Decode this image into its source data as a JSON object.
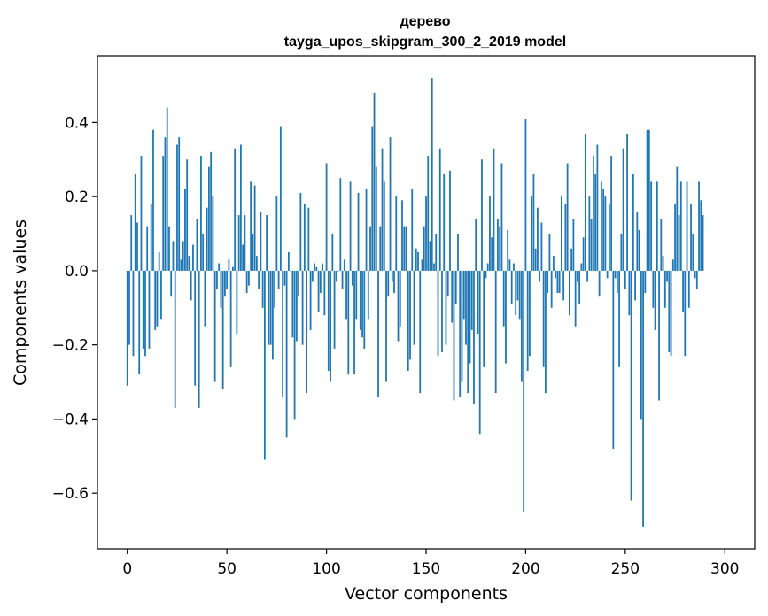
{
  "chart_data": {
    "type": "bar",
    "title_line1": "дерево",
    "title_line2": "tayga_upos_skipgram_300_2_2019 model",
    "xlabel": "Vector components",
    "ylabel": "Components values",
    "xlim": [
      -15,
      315
    ],
    "ylim": [
      -0.75,
      0.58
    ],
    "xticks": [
      0,
      50,
      100,
      150,
      200,
      250,
      300
    ],
    "yticks": [
      -0.6,
      -0.4,
      -0.2,
      0.0,
      0.2,
      0.4
    ],
    "ytick_labels": [
      "−0.6",
      "−0.4",
      "−0.2",
      "0.0",
      "0.2",
      "0.4"
    ],
    "bar_color": "#1f77b4",
    "values": [
      -0.31,
      -0.2,
      0.15,
      -0.23,
      0.26,
      0.13,
      -0.28,
      0.31,
      -0.21,
      -0.23,
      0.12,
      -0.21,
      0.18,
      0.38,
      -0.16,
      -0.15,
      0.05,
      -0.13,
      0.31,
      0.36,
      0.44,
      0.12,
      -0.07,
      0.08,
      -0.37,
      0.34,
      0.36,
      0.03,
      0.08,
      0.22,
      0.3,
      0.04,
      -0.08,
      0.07,
      -0.31,
      0.14,
      -0.37,
      0.31,
      0.1,
      -0.15,
      0.17,
      0.28,
      0.32,
      0.2,
      -0.3,
      -0.05,
      0.02,
      -0.1,
      -0.32,
      -0.07,
      -0.05,
      0.03,
      -0.26,
      0.01,
      0.33,
      -0.17,
      0.15,
      0.34,
      0.07,
      0.15,
      -0.06,
      -0.04,
      0.24,
      0.1,
      0.23,
      0.04,
      -0.05,
      0.16,
      -0.1,
      -0.51,
      0.15,
      -0.2,
      -0.2,
      -0.24,
      -0.1,
      0.2,
      -0.05,
      0.39,
      -0.34,
      -0.04,
      -0.45,
      0.05,
      0.0,
      -0.18,
      -0.4,
      -0.19,
      -0.07,
      0.21,
      -0.2,
      0.18,
      -0.33,
      0.17,
      -0.16,
      -0.03,
      0.02,
      0.01,
      -0.11,
      -0.06,
      0.02,
      -0.12,
      0.29,
      -0.27,
      -0.3,
      0.1,
      -0.21,
      -0.03,
      0.0,
      0.25,
      -0.05,
      0.03,
      -0.13,
      -0.28,
      0.24,
      -0.04,
      -0.28,
      -0.13,
      0.21,
      -0.16,
      -0.18,
      -0.21,
      0.22,
      -0.13,
      0.12,
      0.39,
      0.48,
      0.28,
      -0.34,
      0.12,
      0.33,
      0.24,
      -0.3,
      -0.07,
      0.36,
      -0.03,
      -0.06,
      0.2,
      -0.19,
      -0.15,
      0.19,
      0.12,
      0.12,
      -0.27,
      -0.24,
      0.22,
      -0.2,
      0.06,
      0.05,
      -0.33,
      0.03,
      0.12,
      0.2,
      0.31,
      0.08,
      0.52,
      0.02,
      0.1,
      -0.23,
      0.33,
      -0.22,
      0.26,
      -0.2,
      -0.07,
      0.27,
      -0.14,
      -0.35,
      -0.09,
      0.1,
      -0.34,
      -0.3,
      -0.13,
      -0.2,
      -0.33,
      -0.25,
      -0.16,
      -0.36,
      0.14,
      -0.17,
      -0.44,
      0.3,
      -0.26,
      -0.02,
      0.02,
      0.2,
      0.09,
      0.33,
      -0.33,
      0.14,
      0.12,
      0.29,
      -0.15,
      -0.25,
      0.11,
      0.03,
      -0.09,
      0.02,
      -0.12,
      -0.08,
      -0.13,
      -0.3,
      -0.65,
      0.41,
      -0.27,
      -0.23,
      0.2,
      0.26,
      0.06,
      0.17,
      -0.03,
      0.13,
      -0.26,
      -0.33,
      -0.06,
      0.1,
      -0.1,
      0.04,
      -0.02,
      -0.06,
      -0.06,
      0.2,
      -0.08,
      0.18,
      0.29,
      -0.12,
      0.06,
      0.14,
      -0.15,
      -0.03,
      -0.09,
      0.02,
      0.09,
      0.37,
      -0.03,
      0.2,
      0.14,
      0.31,
      0.26,
      0.34,
      -0.07,
      0.24,
      0.22,
      0.2,
      -0.02,
      0.18,
      0.31,
      -0.48,
      -0.02,
      -0.06,
      -0.26,
      0.1,
      0.33,
      -0.05,
      0.37,
      -0.12,
      -0.62,
      0.26,
      -0.08,
      0.16,
      0.11,
      -0.4,
      -0.69,
      -0.06,
      0.38,
      0.38,
      0.24,
      -0.1,
      -0.16,
      0.24,
      -0.35,
      0.14,
      0.04,
      -0.1,
      -0.03,
      -0.22,
      -0.23,
      0.03,
      0.18,
      0.28,
      0.15,
      0.24,
      -0.11,
      -0.23,
      0.24,
      -0.1,
      0.18,
      0.1,
      -0.02,
      -0.05,
      0.24,
      0.19,
      0.15
    ]
  }
}
